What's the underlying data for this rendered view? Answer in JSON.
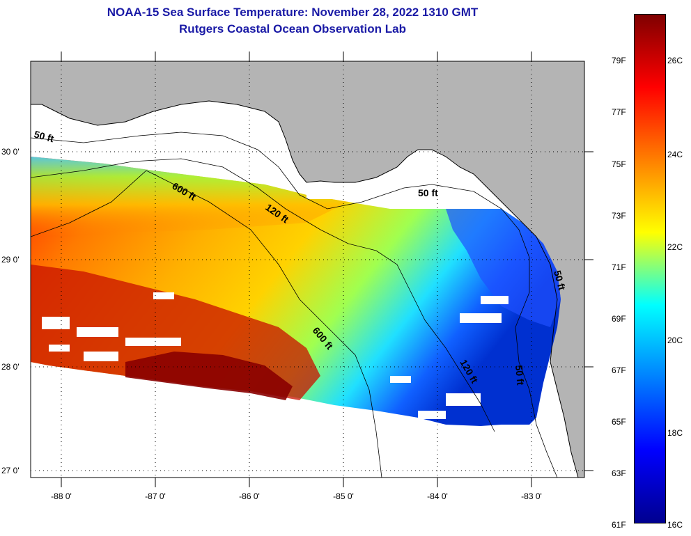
{
  "header": {
    "title": "NOAA-15 Sea Surface Temperature:  November 28, 2022 1310 GMT",
    "subtitle": "Rutgers Coastal Ocean Observation Lab"
  },
  "map": {
    "lat_labels": [
      "30 0'",
      "29 0'",
      "28 0'",
      "27 0'"
    ],
    "lon_labels": [
      "-88 0'",
      "-87 0'",
      "-86 0'",
      "-85 0'",
      "-84 0'",
      "-83 0'"
    ],
    "isobath_labels": [
      "50 ft",
      "600 ft",
      "120 ft",
      "50 ft",
      "600 ft",
      "120 ft",
      "50 ft",
      "50 ft"
    ],
    "colors": {
      "land": "#b4b4b4",
      "cloud": "#ffffff",
      "frame": "#000000"
    }
  },
  "colorbar": {
    "fahrenheit_labels": [
      "79F",
      "77F",
      "75F",
      "73F",
      "71F",
      "69F",
      "67F",
      "65F",
      "63F",
      "61F"
    ],
    "celsius_labels": [
      "26C",
      "24C",
      "22C",
      "20C",
      "18C",
      "16C"
    ],
    "stops": [
      "#7f0000",
      "#ff0000",
      "#ff7f00",
      "#ffff00",
      "#00ffff",
      "#0080ff",
      "#0000ff",
      "#00008f"
    ]
  }
}
